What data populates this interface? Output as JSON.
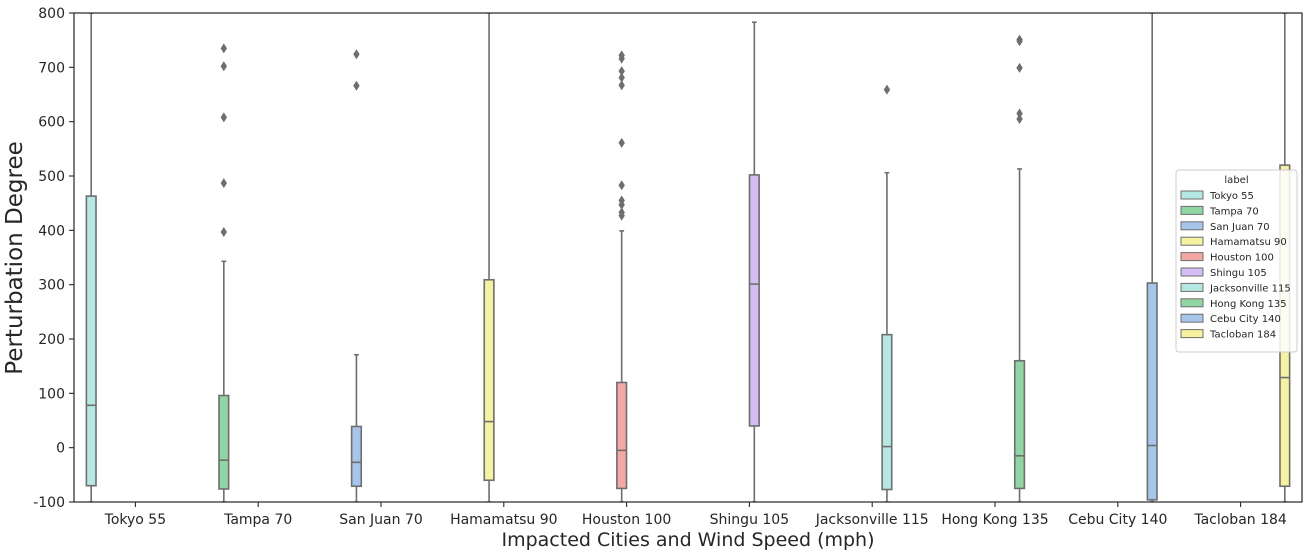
{
  "chart_data": {
    "type": "box",
    "title": "",
    "xlabel": "Impacted Cities and Wind Speed (mph)",
    "ylabel": "Perturbation Degree",
    "ylim": [
      -100,
      800
    ],
    "yticks": [
      -100,
      0,
      100,
      200,
      300,
      400,
      500,
      600,
      700,
      800
    ],
    "categories": [
      "Tokyo 55",
      "Tampa 70",
      "San Juan 70",
      "Hamamatsu 90",
      "Houston 100",
      "Shingu 105",
      "Jacksonville 115",
      "Hong Kong 135",
      "Cebu City 140",
      "Tacloban 184"
    ],
    "legend": {
      "title": "label",
      "position": "center-right"
    },
    "series": [
      {
        "name": "Tokyo 55",
        "category_index": 0,
        "color": "#b5e8e2",
        "whisker_low": -100,
        "q1": -70,
        "median": 78,
        "q3": 463,
        "whisker_high": 800,
        "outliers": []
      },
      {
        "name": "Tampa 70",
        "category_index": 1,
        "color": "#8fd6a3",
        "whisker_low": -100,
        "q1": -76,
        "median": -23,
        "q3": 96,
        "whisker_high": 343,
        "outliers": [
          397,
          487,
          608,
          702,
          735
        ]
      },
      {
        "name": "San Juan 70",
        "category_index": 2,
        "color": "#a6c5ea",
        "whisker_low": -100,
        "q1": -71,
        "median": -27,
        "q3": 39,
        "whisker_high": 171,
        "outliers": [
          666,
          724
        ]
      },
      {
        "name": "Hamamatsu 90",
        "category_index": 3,
        "color": "#f5f2a0",
        "whisker_low": -100,
        "q1": -60,
        "median": 48,
        "q3": 309,
        "whisker_high": 800,
        "outliers": []
      },
      {
        "name": "Houston 100",
        "category_index": 4,
        "color": "#f3a8a3",
        "whisker_low": -100,
        "q1": -75,
        "median": -5,
        "q3": 120,
        "whisker_high": 399,
        "outliers": [
          427,
          433,
          447,
          455,
          483,
          561,
          667,
          681,
          693,
          716,
          722
        ]
      },
      {
        "name": "Shingu 105",
        "category_index": 5,
        "color": "#d3bdf3",
        "whisker_low": -100,
        "q1": 40,
        "median": 301,
        "q3": 502,
        "whisker_high": 783,
        "outliers": []
      },
      {
        "name": "Jacksonville 115",
        "category_index": 6,
        "color": "#b5e8e2",
        "whisker_low": -100,
        "q1": -77,
        "median": 2,
        "q3": 208,
        "whisker_high": 506,
        "outliers": [
          659
        ]
      },
      {
        "name": "Hong Kong 135",
        "category_index": 7,
        "color": "#8fd6a3",
        "whisker_low": -100,
        "q1": -75,
        "median": -15,
        "q3": 160,
        "whisker_high": 513,
        "outliers": [
          605,
          615,
          699,
          748,
          751
        ]
      },
      {
        "name": "Cebu City 140",
        "category_index": 8,
        "color": "#a6c5ea",
        "whisker_low": -100,
        "q1": -96,
        "median": 4,
        "q3": 303,
        "whisker_high": 800,
        "outliers": []
      },
      {
        "name": "Tacloban 184",
        "category_index": 9,
        "color": "#f5f2a0",
        "whisker_low": -100,
        "q1": -71,
        "median": 129,
        "q3": 520,
        "whisker_high": 800,
        "outliers": []
      }
    ],
    "grid": false
  }
}
